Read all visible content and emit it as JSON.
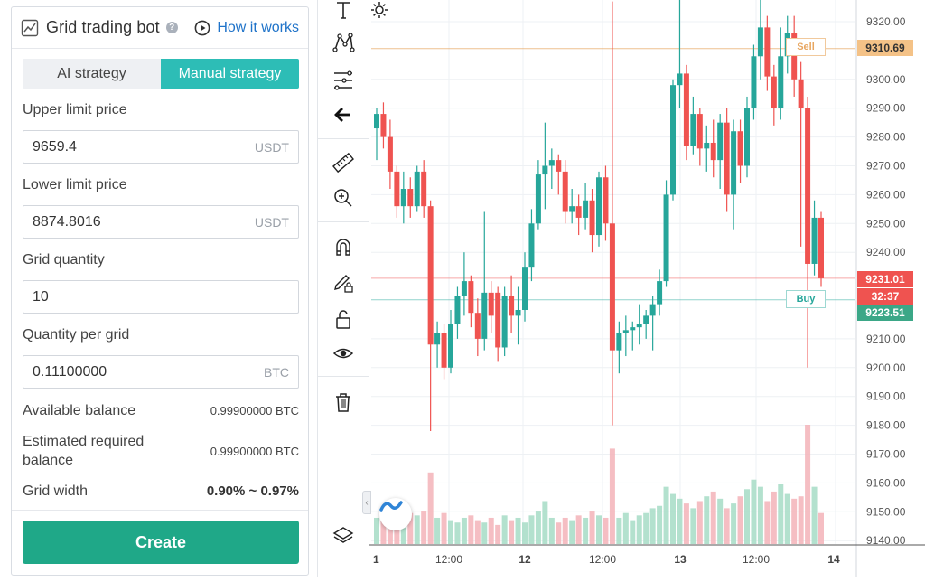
{
  "panel": {
    "title": "Grid trading bot",
    "help_icon": "?",
    "how_it_works": "How it works",
    "tabs": [
      {
        "label": "AI strategy",
        "active": false
      },
      {
        "label": "Manual strategy",
        "active": true
      }
    ],
    "fields": {
      "upper_label": "Upper limit price",
      "upper_value": "9659.4",
      "upper_unit": "USDT",
      "lower_label": "Lower limit price",
      "lower_value": "8874.8016",
      "lower_unit": "USDT",
      "grid_qty_label": "Grid quantity",
      "grid_qty_value": "10",
      "qty_per_grid_label": "Quantity per grid",
      "qty_per_grid_value": "0.11100000",
      "qty_per_grid_unit": "BTC"
    },
    "info": {
      "available_label": "Available balance",
      "available_value": "0.99900000 BTC",
      "required_label": "Estimated required balance",
      "required_value": "0.99900000 BTC",
      "width_label": "Grid width",
      "width_value": "0.90% ~ 0.97%"
    },
    "create_label": "Create",
    "accent": "#2dbdb6",
    "button_color": "#1fa888"
  },
  "toolbar": {
    "tools": [
      "text-icon",
      "pattern-icon",
      "fib-icon",
      "back-arrow-icon",
      "ruler-icon",
      "zoom-in-icon",
      "magnet-icon",
      "pencil-lock-icon",
      "unlock-icon",
      "eye-icon",
      "trash-icon",
      "layers-icon"
    ],
    "collapse_glyph": "‹"
  },
  "chart_data": {
    "type": "candlestick",
    "y_axis_labels": [
      "9320.00",
      "9310.69",
      "9300.00",
      "9290.00",
      "9280.00",
      "9270.00",
      "9260.00",
      "9250.00",
      "9240.00",
      "9231.01",
      "9210.00",
      "9200.00",
      "9190.00",
      "9180.00",
      "9170.00",
      "9160.00",
      "9150.00",
      "9140.00"
    ],
    "x_axis_labels": [
      "1",
      "12:00",
      "12",
      "12:00",
      "13",
      "12:00",
      "14"
    ],
    "markers": {
      "sell_price": "9310.69",
      "current_price": "9231.01",
      "countdown": "32:37",
      "buy_price": "9223.51",
      "sell_label": "Sell",
      "buy_label": "Buy"
    },
    "colors": {
      "up": "#26a69a",
      "down": "#ef5350",
      "sell": "#e8a660",
      "buy": "#26a69a",
      "countdown": "#ef5350"
    },
    "candles": [
      [
        9283,
        9288,
        9272,
        9290,
        "u"
      ],
      [
        9288,
        9280,
        9276,
        9292,
        "d"
      ],
      [
        9280,
        9268,
        9262,
        9286,
        "d"
      ],
      [
        9268,
        9256,
        9252,
        9270,
        "d"
      ],
      [
        9256,
        9262,
        9250,
        9268,
        "u"
      ],
      [
        9262,
        9256,
        9252,
        9266,
        "d"
      ],
      [
        9256,
        9268,
        9254,
        9270,
        "u"
      ],
      [
        9268,
        9256,
        9252,
        9272,
        "d"
      ],
      [
        9256,
        9208,
        9178,
        9258,
        "d"
      ],
      [
        9208,
        9212,
        9200,
        9216,
        "u"
      ],
      [
        9212,
        9200,
        9196,
        9215,
        "d"
      ],
      [
        9200,
        9215,
        9198,
        9220,
        "u"
      ],
      [
        9215,
        9225,
        9210,
        9228,
        "u"
      ],
      [
        9225,
        9230,
        9218,
        9240,
        "u"
      ],
      [
        9230,
        9219,
        9214,
        9232,
        "d"
      ],
      [
        9219,
        9210,
        9204,
        9224,
        "d"
      ],
      [
        9210,
        9226,
        9206,
        9254,
        "u"
      ],
      [
        9226,
        9218,
        9212,
        9230,
        "d"
      ],
      [
        9226,
        9207,
        9202,
        9228,
        "d"
      ],
      [
        9207,
        9225,
        9204,
        9228,
        "u"
      ],
      [
        9225,
        9218,
        9212,
        9232,
        "d"
      ],
      [
        9218,
        9220,
        9208,
        9228,
        "u"
      ],
      [
        9220,
        9235,
        9216,
        9240,
        "u"
      ],
      [
        9235,
        9250,
        9230,
        9255,
        "u"
      ],
      [
        9250,
        9267,
        9248,
        9272,
        "u"
      ],
      [
        9267,
        9270,
        9255,
        9285,
        "u"
      ],
      [
        9270,
        9272,
        9262,
        9276,
        "u"
      ],
      [
        9272,
        9268,
        9260,
        9274,
        "d"
      ],
      [
        9268,
        9254,
        9250,
        9272,
        "d"
      ],
      [
        9254,
        9256,
        9250,
        9262,
        "u"
      ],
      [
        9256,
        9252,
        9246,
        9260,
        "d"
      ],
      [
        9252,
        9258,
        9248,
        9264,
        "u"
      ],
      [
        9258,
        9246,
        9240,
        9262,
        "d"
      ],
      [
        9246,
        9266,
        9242,
        9268,
        "u"
      ],
      [
        9266,
        9250,
        9244,
        9270,
        "d"
      ],
      [
        9250,
        9206,
        9180,
        9327,
        "d"
      ],
      [
        9206,
        9212,
        9198,
        9216,
        "u"
      ],
      [
        9212,
        9213,
        9204,
        9218,
        "u"
      ],
      [
        9213,
        9214,
        9206,
        9216,
        "u"
      ],
      [
        9214,
        9215,
        9208,
        9222,
        "u"
      ],
      [
        9215,
        9218,
        9210,
        9220,
        "u"
      ],
      [
        9218,
        9222,
        9206,
        9225,
        "u"
      ],
      [
        9222,
        9230,
        9218,
        9234,
        "u"
      ],
      [
        9230,
        9260,
        9228,
        9265,
        "u"
      ],
      [
        9260,
        9298,
        9258,
        9300,
        "u"
      ],
      [
        9298,
        9302,
        9290,
        9330,
        "u"
      ],
      [
        9302,
        9277,
        9272,
        9305,
        "d"
      ],
      [
        9277,
        9288,
        9274,
        9294,
        "u"
      ],
      [
        9288,
        9276,
        9270,
        9290,
        "d"
      ],
      [
        9276,
        9278,
        9268,
        9284,
        "u"
      ],
      [
        9278,
        9272,
        9266,
        9286,
        "d"
      ],
      [
        9272,
        9285,
        9262,
        9288,
        "u"
      ],
      [
        9285,
        9260,
        9254,
        9290,
        "d"
      ],
      [
        9260,
        9282,
        9248,
        9286,
        "u"
      ],
      [
        9282,
        9270,
        9264,
        9286,
        "d"
      ],
      [
        9270,
        9290,
        9266,
        9294,
        "u"
      ],
      [
        9290,
        9308,
        9286,
        9312,
        "u"
      ],
      [
        9308,
        9318,
        9300,
        9330,
        "u"
      ],
      [
        9318,
        9301,
        9296,
        9322,
        "d"
      ],
      [
        9301,
        9290,
        9284,
        9305,
        "d"
      ],
      [
        9290,
        9308,
        9286,
        9318,
        "u"
      ],
      [
        9308,
        9316,
        9302,
        9322,
        "u"
      ],
      [
        9316,
        9300,
        9294,
        9322,
        "d"
      ],
      [
        9300,
        9290,
        9242,
        9306,
        "d"
      ],
      [
        9290,
        9236,
        9200,
        9294,
        "d"
      ],
      [
        9236,
        9252,
        9232,
        9258,
        "u"
      ],
      [
        9252,
        9231,
        9228,
        9254,
        "d"
      ]
    ],
    "volume": [
      22,
      28,
      18,
      20,
      14,
      26,
      24,
      28,
      60,
      22,
      26,
      20,
      18,
      22,
      24,
      20,
      18,
      22,
      16,
      24,
      20,
      22,
      18,
      24,
      28,
      36,
      22,
      18,
      22,
      20,
      24,
      22,
      28,
      24,
      22,
      80,
      22,
      26,
      20,
      24,
      26,
      30,
      32,
      48,
      42,
      38,
      34,
      30,
      36,
      40,
      44,
      38,
      30,
      34,
      40,
      46,
      54,
      48,
      36,
      44,
      50,
      42,
      38,
      40,
      100,
      48,
      26
    ],
    "volume_colors": [
      "u",
      "d",
      "d",
      "d",
      "u",
      "d",
      "u",
      "d",
      "d",
      "u",
      "d",
      "u",
      "u",
      "u",
      "d",
      "d",
      "u",
      "d",
      "d",
      "u",
      "d",
      "u",
      "u",
      "u",
      "u",
      "u",
      "u",
      "d",
      "d",
      "u",
      "d",
      "u",
      "d",
      "u",
      "d",
      "d",
      "u",
      "u",
      "u",
      "u",
      "u",
      "u",
      "u",
      "u",
      "u",
      "u",
      "d",
      "u",
      "d",
      "u",
      "d",
      "u",
      "d",
      "u",
      "d",
      "u",
      "u",
      "u",
      "d",
      "d",
      "u",
      "u",
      "d",
      "d",
      "d",
      "u",
      "d"
    ]
  }
}
